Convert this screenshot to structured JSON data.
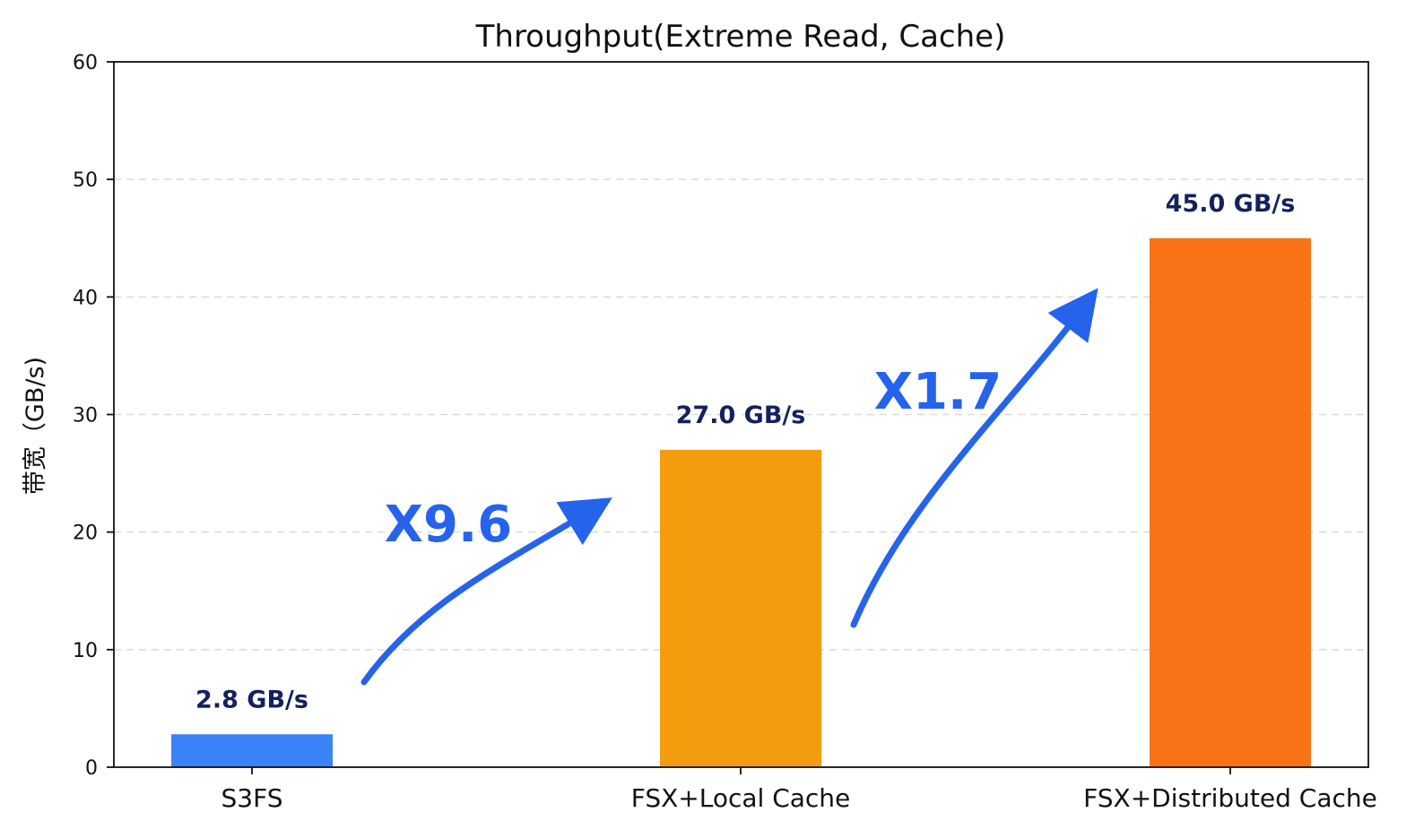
{
  "chart_data": {
    "type": "bar",
    "title": "Throughput(Extreme Read, Cache)",
    "xlabel": "",
    "ylabel": "带宽（GB/s)",
    "ylim": [
      0,
      60
    ],
    "yticks": [
      0,
      10,
      20,
      30,
      40,
      50,
      60
    ],
    "grid": true,
    "categories": [
      "S3FS",
      "FSX+Local Cache",
      "FSX+Distributed Cache"
    ],
    "values": [
      2.8,
      27.0,
      45.0
    ],
    "data_labels": [
      "2.8 GB/s",
      "27.0 GB/s",
      "45.0 GB/s"
    ],
    "colors": [
      "#3b82f6",
      "#f39c0e",
      "#f97316"
    ],
    "annotations": [
      {
        "text": "X9.6",
        "from": "S3FS",
        "to": "FSX+Local Cache",
        "color": "#2563eb"
      },
      {
        "text": "X1.7",
        "from": "FSX+Local Cache",
        "to": "FSX+Distributed Cache",
        "color": "#2563eb"
      }
    ]
  }
}
